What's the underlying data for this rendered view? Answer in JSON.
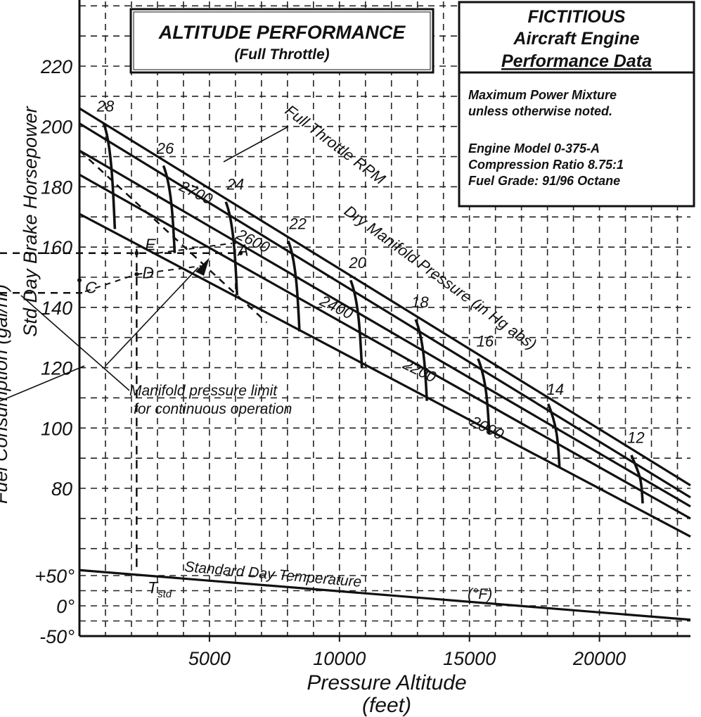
{
  "chart_data": {
    "type": "line",
    "title": "ALTITUDE PERFORMANCE",
    "subtitle": "(Full Throttle)",
    "info_box": {
      "title_lines": [
        "FICTITIOUS",
        "Aircraft Engine",
        "Performance Data"
      ],
      "text_lines": [
        "Maximum Power Mixture",
        "unless otherwise noted.",
        "",
        "Engine Model 0-375-A",
        "Compression Ratio 8.75:1",
        "Fuel Grade:   91/96 Octane"
      ]
    },
    "xlabel": "Pressure Altitude",
    "xlabel_unit": "(feet)",
    "ylabel": "Std Day Brake Horsepower",
    "ylabel_cut": "Fuel Consumption (gal/hr)",
    "x_ticks": [
      5000,
      10000,
      15000,
      20000
    ],
    "x_tick_labels": [
      "5000",
      "10000",
      "15000",
      "20000"
    ],
    "xlim": [
      0,
      23500
    ],
    "hp_ticks": [
      80,
      100,
      120,
      140,
      160,
      180,
      200,
      220
    ],
    "hp_tick_labels": [
      "80",
      "100",
      "120",
      "140",
      "160",
      "180",
      "200",
      "220"
    ],
    "hp_range": [
      60,
      240
    ],
    "temp_ticks": [
      50,
      0,
      -50
    ],
    "temp_tick_labels": [
      "+50°",
      "0°",
      "-50°"
    ],
    "temp_range": [
      -50,
      80
    ],
    "rpm_series": [
      {
        "name": "2700",
        "start_hp": 206,
        "end_hp": 81
      },
      {
        "name": "2600",
        "start_hp": 201,
        "end_hp": 77
      },
      {
        "name": "2400",
        "start_hp": 192,
        "end_hp": 74
      },
      {
        "name": "2200",
        "start_hp": 184,
        "end_hp": 70
      },
      {
        "name": "2000",
        "start_hp": 171,
        "end_hp": 64
      }
    ],
    "rpm_labels": [
      {
        "text": "2700",
        "x": 3800,
        "hp": 179
      },
      {
        "text": "2600",
        "x": 6000,
        "hp": 163
      },
      {
        "text": "2400",
        "x": 9200,
        "hp": 141
      },
      {
        "text": "2200",
        "x": 12400,
        "hp": 120
      },
      {
        "text": "2000",
        "x": 15000,
        "hp": 101
      }
    ],
    "manifold_pressure": [
      {
        "name": "28",
        "alt": 1200,
        "hp_top": 201,
        "hp_bot": 166,
        "label_x": 1000,
        "label_hp": 205
      },
      {
        "name": "26",
        "alt": 3500,
        "hp_top": 187,
        "hp_bot": 158,
        "label_x": 3300,
        "label_hp": 191
      },
      {
        "name": "24",
        "alt": 5900,
        "hp_top": 175,
        "hp_bot": 144,
        "label_x": 6000,
        "label_hp": 179
      },
      {
        "name": "22",
        "alt": 8300,
        "hp_top": 162,
        "hp_bot": 132,
        "label_x": 8400,
        "label_hp": 166
      },
      {
        "name": "20",
        "alt": 10700,
        "hp_top": 149,
        "hp_bot": 120,
        "label_x": 10700,
        "label_hp": 153
      },
      {
        "name": "18",
        "alt": 13200,
        "hp_top": 136,
        "hp_bot": 109,
        "label_x": 13100,
        "label_hp": 140
      },
      {
        "name": "16",
        "alt": 15600,
        "hp_top": 123,
        "hp_bot": 98,
        "label_x": 15600,
        "label_hp": 127
      },
      {
        "name": "14",
        "alt": 18300,
        "hp_top": 108,
        "hp_bot": 87,
        "label_x": 18300,
        "label_hp": 111
      },
      {
        "name": "12",
        "alt": 21500,
        "hp_top": 91,
        "hp_bot": 75,
        "label_x": 21400,
        "label_hp": 95
      }
    ],
    "annotations": {
      "full_throttle": "Full Throttle RPM",
      "dry_mp": "Dry Manifold Pressure  (in Hg abs)",
      "mp_limit_lines": [
        "Manifold pressure limit",
        "for continuous operation"
      ],
      "std_temp": "Standard Day Temperature",
      "std_temp_unit": "(°F)",
      "tstd": "T",
      "tstd_sub": "std"
    },
    "points": [
      {
        "label": "A",
        "alt": 6200,
        "hp": 158
      },
      {
        "label": "C",
        "alt": 0,
        "hp": 149
      },
      {
        "label": "D",
        "alt": 2200,
        "hp": 151
      },
      {
        "label": "E",
        "alt": 2200,
        "hp": 158
      }
    ],
    "std_temp_line": {
      "start_temp": 59,
      "end_temp": -23
    },
    "grid": true
  }
}
